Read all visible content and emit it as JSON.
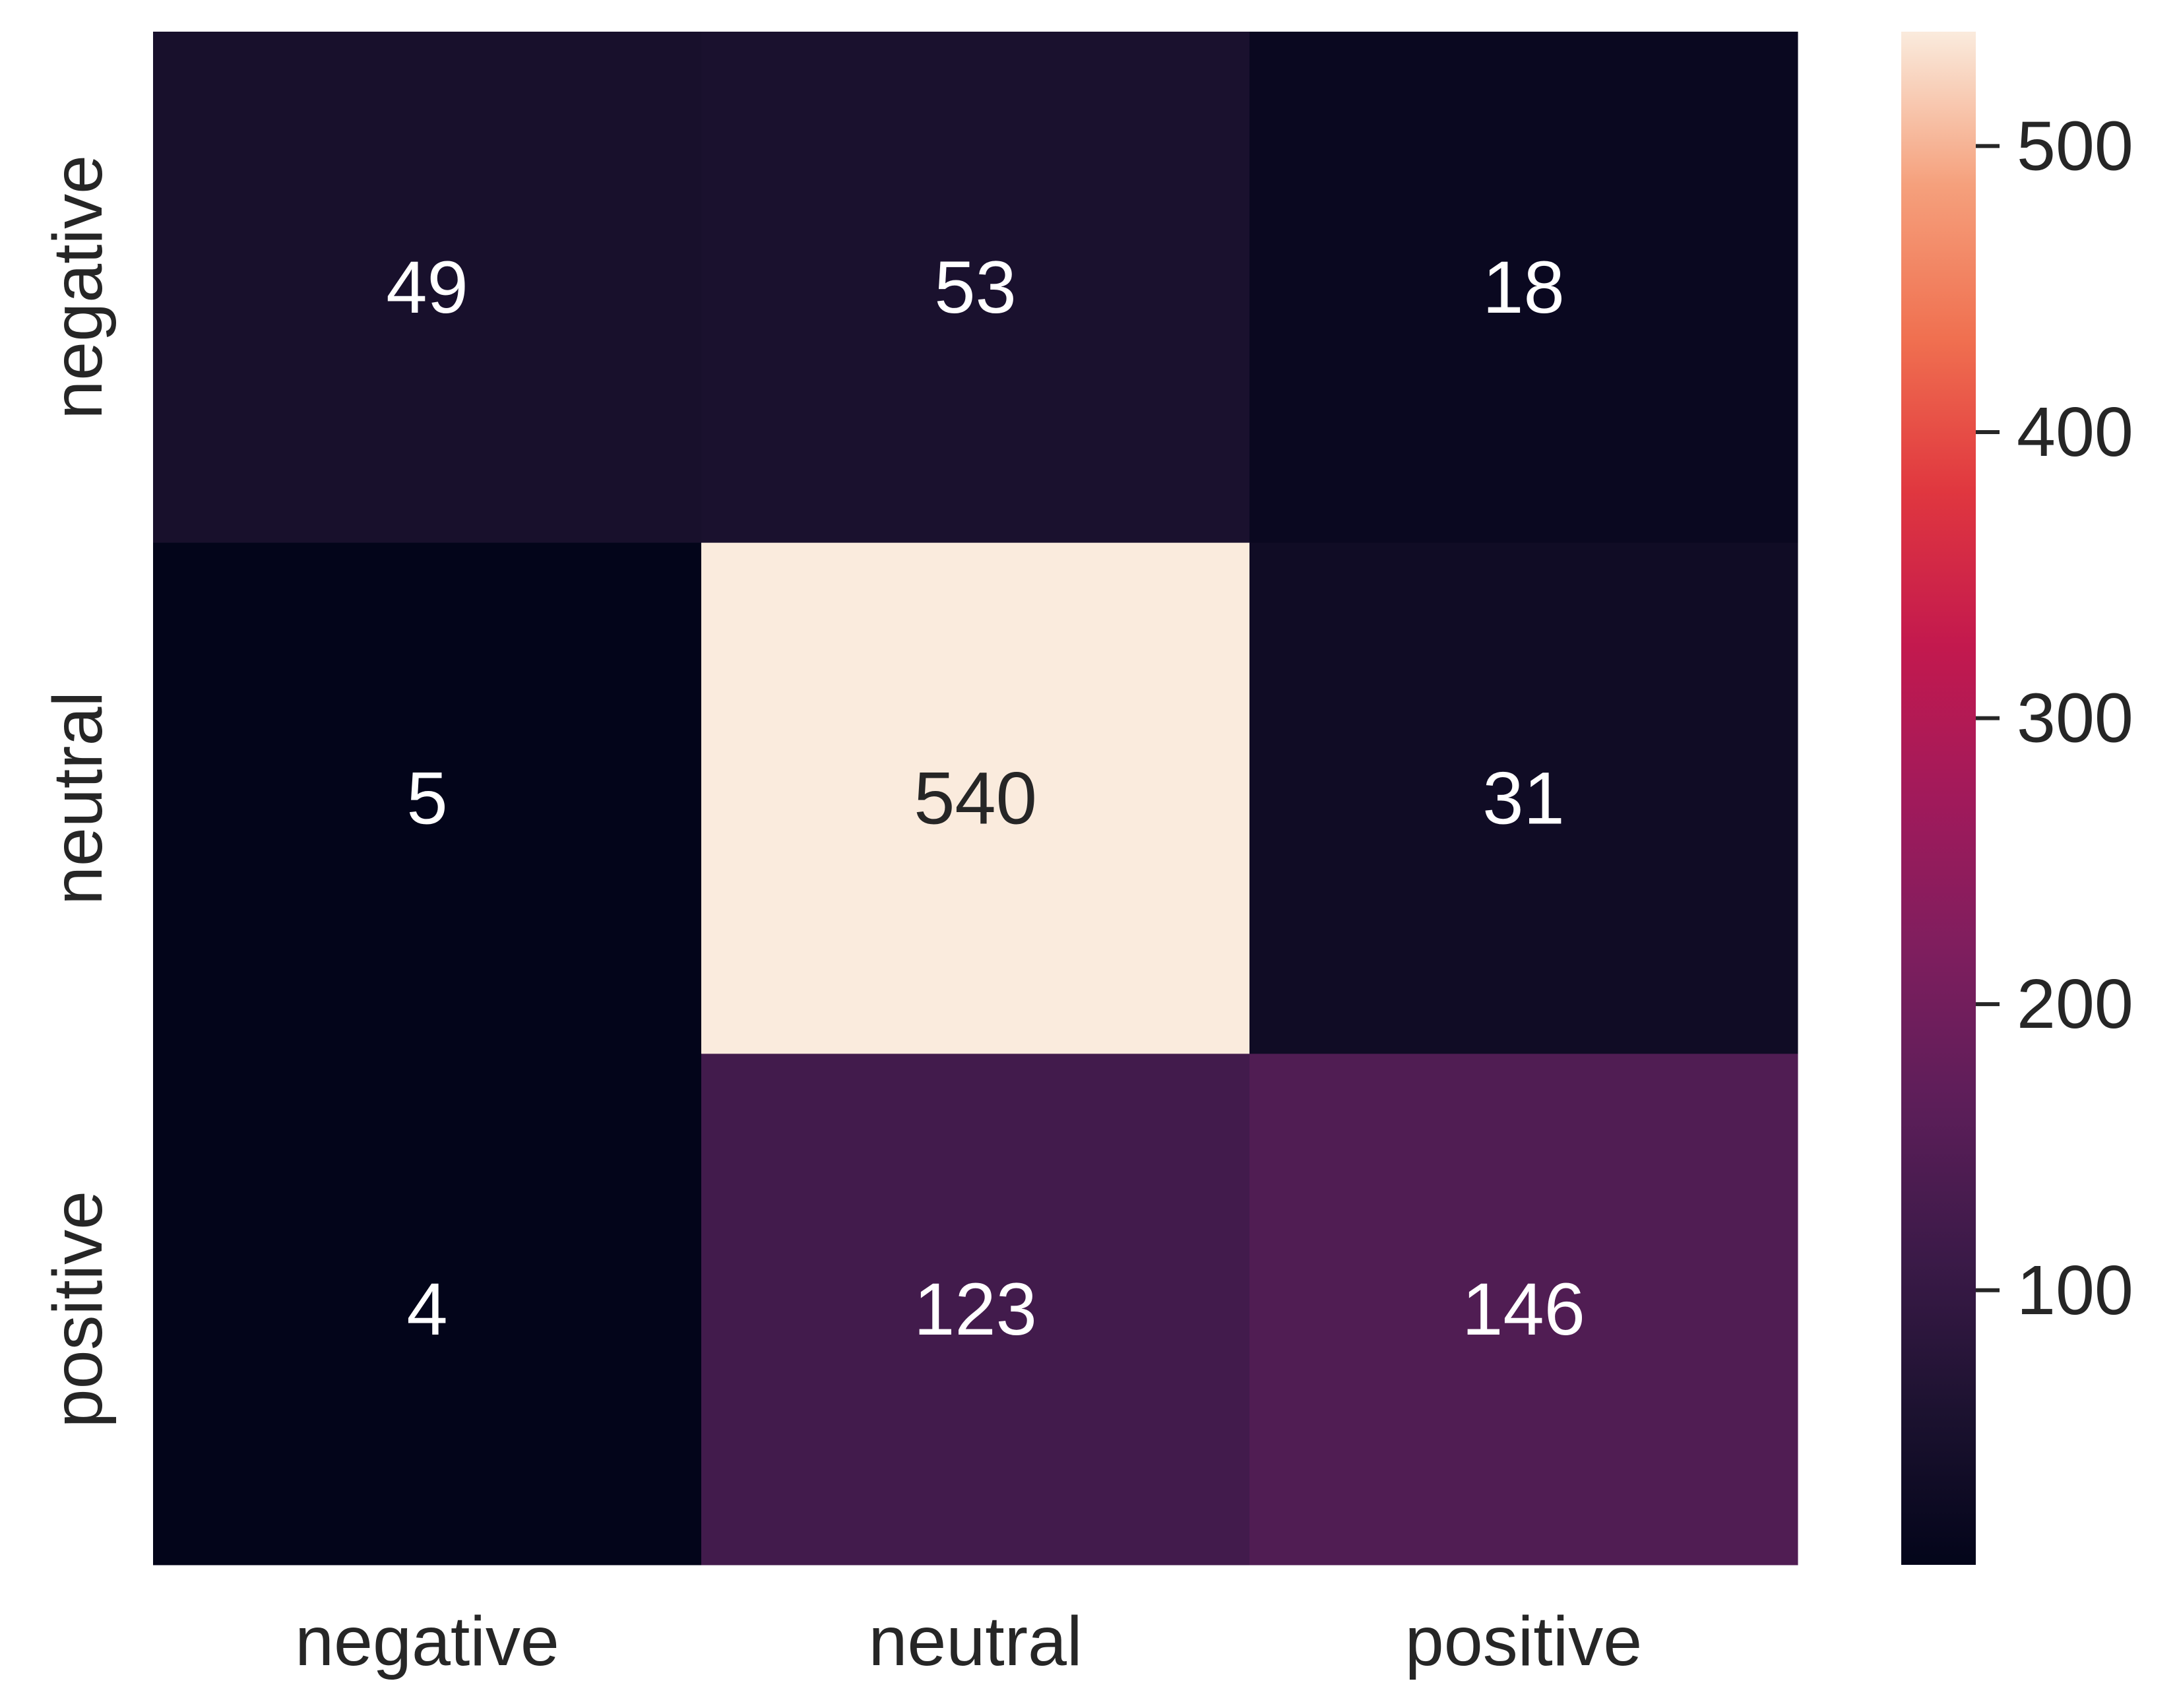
{
  "chart_data": {
    "type": "heatmap",
    "title": "",
    "xlabel": "",
    "ylabel": "",
    "x_categories": [
      "negative",
      "neutral",
      "positive"
    ],
    "y_categories": [
      "negative",
      "neutral",
      "positive"
    ],
    "values": [
      [
        49,
        53,
        18
      ],
      [
        5,
        540,
        31
      ],
      [
        4,
        123,
        146
      ]
    ],
    "annotations": true,
    "colormap": "rocket",
    "colorbar": {
      "range": [
        4,
        540
      ],
      "ticks": [
        100,
        200,
        300,
        400,
        500
      ],
      "tick_labels": [
        "100",
        "200",
        "300",
        "400",
        "500"
      ],
      "placement": "right"
    },
    "grid": false,
    "colors": {
      "axis_text": "#262626",
      "annotation_light": "#ffffff",
      "annotation_dark": "#262626"
    }
  }
}
